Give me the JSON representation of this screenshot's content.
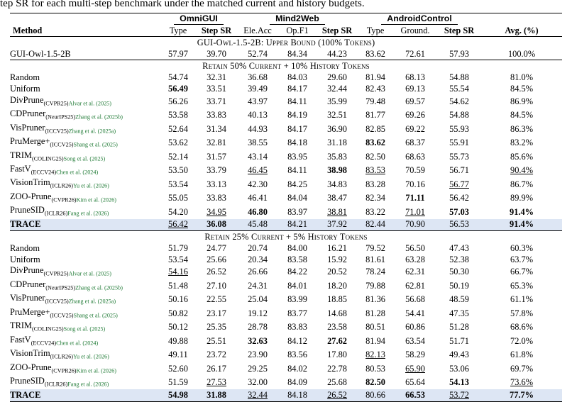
{
  "caption": "tep SR for each multi-step benchmark under the matched current and history budgets.",
  "benchmarks": [
    "OmniGUI",
    "Mind2Web",
    "AndroidControl"
  ],
  "columns": [
    "Method",
    "Type",
    "Step SR",
    "Ele.Acc",
    "Op.F1",
    "Step SR",
    "Type",
    "Ground.",
    "Step SR",
    "Avg. (%)"
  ],
  "sections": [
    {
      "title": "GUI-Owl-1.5-2B: Upper Bound (100% Tokens)",
      "rows": [
        {
          "method": "GUI-Owl-1.5-2B",
          "venue": "",
          "cite": "",
          "highlight": false,
          "cells": [
            {
              "v": "57.97"
            },
            {
              "v": "39.70"
            },
            {
              "v": "52.74"
            },
            {
              "v": "84.34"
            },
            {
              "v": "44.23"
            },
            {
              "v": "83.62"
            },
            {
              "v": "72.61"
            },
            {
              "v": "57.93"
            },
            {
              "v": "100.0%"
            }
          ]
        }
      ]
    },
    {
      "title": "Retain 50% Current + 10% History Tokens",
      "rows": [
        {
          "method": "Random",
          "venue": "",
          "cite": "",
          "highlight": false,
          "cells": [
            {
              "v": "54.74"
            },
            {
              "v": "32.31"
            },
            {
              "v": "36.68"
            },
            {
              "v": "84.03"
            },
            {
              "v": "29.60"
            },
            {
              "v": "81.94"
            },
            {
              "v": "68.13"
            },
            {
              "v": "54.88"
            },
            {
              "v": "81.0%"
            }
          ]
        },
        {
          "method": "Uniform",
          "venue": "",
          "cite": "",
          "highlight": false,
          "cells": [
            {
              "v": "56.49",
              "b": true
            },
            {
              "v": "33.51"
            },
            {
              "v": "39.49"
            },
            {
              "v": "84.17"
            },
            {
              "v": "32.44"
            },
            {
              "v": "82.43"
            },
            {
              "v": "69.13"
            },
            {
              "v": "55.54"
            },
            {
              "v": "84.5%"
            }
          ]
        },
        {
          "method": "DivPrune",
          "venue": "(CVPR25)",
          "cite": "Alvar et al. (2025)",
          "highlight": false,
          "cells": [
            {
              "v": "56.26"
            },
            {
              "v": "33.71"
            },
            {
              "v": "43.97"
            },
            {
              "v": "84.11"
            },
            {
              "v": "35.99"
            },
            {
              "v": "79.48"
            },
            {
              "v": "69.57"
            },
            {
              "v": "54.62"
            },
            {
              "v": "86.9%"
            }
          ]
        },
        {
          "method": "CDPruner",
          "venue": "(NeurIPS25)",
          "cite": "Zhang et al. (2025b)",
          "highlight": false,
          "cells": [
            {
              "v": "53.58"
            },
            {
              "v": "33.83"
            },
            {
              "v": "40.13"
            },
            {
              "v": "84.19"
            },
            {
              "v": "32.51"
            },
            {
              "v": "81.77"
            },
            {
              "v": "69.26"
            },
            {
              "v": "54.88"
            },
            {
              "v": "84.5%"
            }
          ]
        },
        {
          "method": "VisPruner",
          "venue": "(ICCV25)",
          "cite": "Zhang et al. (2025a)",
          "highlight": false,
          "cells": [
            {
              "v": "52.64"
            },
            {
              "v": "31.34"
            },
            {
              "v": "44.93"
            },
            {
              "v": "84.17"
            },
            {
              "v": "36.90"
            },
            {
              "v": "82.85"
            },
            {
              "v": "69.22"
            },
            {
              "v": "55.93"
            },
            {
              "v": "86.3%"
            }
          ]
        },
        {
          "method": "PruMerge+",
          "venue": "(ICCV25)",
          "cite": "Shang et al. (2025)",
          "highlight": false,
          "cells": [
            {
              "v": "53.62"
            },
            {
              "v": "32.81"
            },
            {
              "v": "38.55"
            },
            {
              "v": "84.18"
            },
            {
              "v": "31.18"
            },
            {
              "v": "83.62",
              "b": true
            },
            {
              "v": "68.37"
            },
            {
              "v": "55.91"
            },
            {
              "v": "83.2%"
            }
          ]
        },
        {
          "method": "TRIM",
          "venue": "(COLING25)",
          "cite": "Song et al. (2025)",
          "highlight": false,
          "cells": [
            {
              "v": "52.14"
            },
            {
              "v": "31.57"
            },
            {
              "v": "43.14"
            },
            {
              "v": "83.95"
            },
            {
              "v": "35.83"
            },
            {
              "v": "82.50"
            },
            {
              "v": "68.63"
            },
            {
              "v": "55.73"
            },
            {
              "v": "85.6%"
            }
          ]
        },
        {
          "method": "FastV",
          "venue": "(ECCV24)",
          "cite": "Chen et al. (2024)",
          "highlight": false,
          "cells": [
            {
              "v": "53.50"
            },
            {
              "v": "33.79"
            },
            {
              "v": "46.45",
              "u": true
            },
            {
              "v": "84.11"
            },
            {
              "v": "38.98",
              "b": true
            },
            {
              "v": "83.53",
              "u": true
            },
            {
              "v": "70.59"
            },
            {
              "v": "56.71"
            },
            {
              "v": "90.4%",
              "u": true
            }
          ]
        },
        {
          "method": "VisionTrim",
          "venue": "(ICLR26)",
          "cite": "Yu et al. (2026)",
          "highlight": false,
          "cells": [
            {
              "v": "53.54"
            },
            {
              "v": "33.13"
            },
            {
              "v": "42.30"
            },
            {
              "v": "84.25"
            },
            {
              "v": "34.83"
            },
            {
              "v": "83.28"
            },
            {
              "v": "70.16"
            },
            {
              "v": "56.77",
              "u": true
            },
            {
              "v": "86.7%"
            }
          ]
        },
        {
          "method": "ZOO-Prune",
          "venue": "(CVPR26)",
          "cite": "Kim et al. (2026)",
          "highlight": false,
          "cells": [
            {
              "v": "55.05"
            },
            {
              "v": "33.83"
            },
            {
              "v": "46.41"
            },
            {
              "v": "84.04"
            },
            {
              "v": "38.47"
            },
            {
              "v": "82.34"
            },
            {
              "v": "71.11",
              "b": true
            },
            {
              "v": "56.42"
            },
            {
              "v": "89.9%"
            }
          ]
        },
        {
          "method": "PruneSID",
          "venue": "(ICLR26)",
          "cite": "Fang et al. (2026)",
          "highlight": false,
          "cells": [
            {
              "v": "54.20"
            },
            {
              "v": "34.95",
              "u": true
            },
            {
              "v": "46.80",
              "b": true
            },
            {
              "v": "83.97"
            },
            {
              "v": "38.81",
              "u": true
            },
            {
              "v": "83.22"
            },
            {
              "v": "71.01",
              "u": true
            },
            {
              "v": "57.03",
              "b": true
            },
            {
              "v": "91.4%",
              "b": true
            }
          ]
        },
        {
          "method": "TRACE",
          "venue": "",
          "cite": "",
          "highlight": true,
          "cells": [
            {
              "v": "56.42",
              "u": true
            },
            {
              "v": "36.08",
              "b": true
            },
            {
              "v": "45.48"
            },
            {
              "v": "84.21"
            },
            {
              "v": "37.92"
            },
            {
              "v": "82.44"
            },
            {
              "v": "70.90"
            },
            {
              "v": "56.53"
            },
            {
              "v": "91.4%",
              "b": true
            }
          ]
        }
      ]
    },
    {
      "title": "Retain 25% Current + 5% History Tokens",
      "rows": [
        {
          "method": "Random",
          "venue": "",
          "cite": "",
          "highlight": false,
          "cells": [
            {
              "v": "51.79"
            },
            {
              "v": "24.77"
            },
            {
              "v": "20.74"
            },
            {
              "v": "84.00"
            },
            {
              "v": "16.21"
            },
            {
              "v": "79.52"
            },
            {
              "v": "56.50"
            },
            {
              "v": "47.43"
            },
            {
              "v": "60.3%"
            }
          ]
        },
        {
          "method": "Uniform",
          "venue": "",
          "cite": "",
          "highlight": false,
          "cells": [
            {
              "v": "53.54"
            },
            {
              "v": "25.66"
            },
            {
              "v": "20.34"
            },
            {
              "v": "83.58"
            },
            {
              "v": "15.92"
            },
            {
              "v": "81.61"
            },
            {
              "v": "63.28"
            },
            {
              "v": "52.38"
            },
            {
              "v": "63.7%"
            }
          ]
        },
        {
          "method": "DivPrune",
          "venue": "(CVPR25)",
          "cite": "Alvar et al. (2025)",
          "highlight": false,
          "cells": [
            {
              "v": "54.16",
              "u": true
            },
            {
              "v": "26.52"
            },
            {
              "v": "26.66"
            },
            {
              "v": "84.22"
            },
            {
              "v": "20.52"
            },
            {
              "v": "78.24"
            },
            {
              "v": "62.31"
            },
            {
              "v": "50.30"
            },
            {
              "v": "66.7%"
            }
          ]
        },
        {
          "method": "CDPruner",
          "venue": "(NeurIPS25)",
          "cite": "Zhang et al. (2025b)",
          "highlight": false,
          "cells": [
            {
              "v": "51.48"
            },
            {
              "v": "27.10"
            },
            {
              "v": "24.31"
            },
            {
              "v": "84.01"
            },
            {
              "v": "18.20"
            },
            {
              "v": "79.88"
            },
            {
              "v": "62.81"
            },
            {
              "v": "50.19"
            },
            {
              "v": "65.3%"
            }
          ]
        },
        {
          "method": "VisPruner",
          "venue": "(ICCV25)",
          "cite": "Zhang et al. (2025a)",
          "highlight": false,
          "cells": [
            {
              "v": "50.16"
            },
            {
              "v": "22.55"
            },
            {
              "v": "25.04"
            },
            {
              "v": "83.99"
            },
            {
              "v": "18.85"
            },
            {
              "v": "81.36"
            },
            {
              "v": "56.68"
            },
            {
              "v": "48.59"
            },
            {
              "v": "61.1%"
            }
          ]
        },
        {
          "method": "PruMerge+",
          "venue": "(ICCV25)",
          "cite": "Shang et al. (2025)",
          "highlight": false,
          "cells": [
            {
              "v": "50.82"
            },
            {
              "v": "23.17"
            },
            {
              "v": "19.12"
            },
            {
              "v": "83.77"
            },
            {
              "v": "14.68"
            },
            {
              "v": "81.28"
            },
            {
              "v": "54.41"
            },
            {
              "v": "47.35"
            },
            {
              "v": "57.8%"
            }
          ]
        },
        {
          "method": "TRIM",
          "venue": "(COLING25)",
          "cite": "Song et al. (2025)",
          "highlight": false,
          "cells": [
            {
              "v": "50.12"
            },
            {
              "v": "25.35"
            },
            {
              "v": "28.78"
            },
            {
              "v": "83.83"
            },
            {
              "v": "23.58"
            },
            {
              "v": "80.51"
            },
            {
              "v": "60.86"
            },
            {
              "v": "51.28"
            },
            {
              "v": "68.6%"
            }
          ]
        },
        {
          "method": "FastV",
          "venue": "(ECCV24)",
          "cite": "Chen et al. (2024)",
          "highlight": false,
          "cells": [
            {
              "v": "49.88"
            },
            {
              "v": "25.51"
            },
            {
              "v": "32.63",
              "b": true
            },
            {
              "v": "84.12"
            },
            {
              "v": "27.62",
              "b": true
            },
            {
              "v": "81.94"
            },
            {
              "v": "63.54"
            },
            {
              "v": "51.71"
            },
            {
              "v": "72.0%"
            }
          ]
        },
        {
          "method": "VisionTrim",
          "venue": "(ICLR26)",
          "cite": "Yu et al. (2026)",
          "highlight": false,
          "cells": [
            {
              "v": "49.11"
            },
            {
              "v": "23.72"
            },
            {
              "v": "23.90"
            },
            {
              "v": "83.56"
            },
            {
              "v": "17.80"
            },
            {
              "v": "82.13",
              "u": true
            },
            {
              "v": "58.29"
            },
            {
              "v": "49.43"
            },
            {
              "v": "61.8%"
            }
          ]
        },
        {
          "method": "ZOO-Prune",
          "venue": "(CVPR26)",
          "cite": "Kim et al. (2026)",
          "highlight": false,
          "cells": [
            {
              "v": "52.60"
            },
            {
              "v": "26.17"
            },
            {
              "v": "29.25"
            },
            {
              "v": "84.02"
            },
            {
              "v": "22.78"
            },
            {
              "v": "80.53"
            },
            {
              "v": "65.90",
              "u": true
            },
            {
              "v": "53.06"
            },
            {
              "v": "69.7%"
            }
          ]
        },
        {
          "method": "PruneSID",
          "venue": "(ICLR26)",
          "cite": "Fang et al. (2026)",
          "highlight": false,
          "cells": [
            {
              "v": "51.59"
            },
            {
              "v": "27.53",
              "u": true
            },
            {
              "v": "32.00"
            },
            {
              "v": "84.09"
            },
            {
              "v": "25.68"
            },
            {
              "v": "82.50",
              "b": true
            },
            {
              "v": "65.64"
            },
            {
              "v": "54.13",
              "b": true
            },
            {
              "v": "73.6%",
              "u": true
            }
          ]
        },
        {
          "method": "TRACE",
          "venue": "",
          "cite": "",
          "highlight": true,
          "cells": [
            {
              "v": "54.98",
              "b": true
            },
            {
              "v": "31.88",
              "b": true
            },
            {
              "v": "32.44",
              "u": true
            },
            {
              "v": "84.18"
            },
            {
              "v": "26.52",
              "u": true
            },
            {
              "v": "80.66"
            },
            {
              "v": "66.53",
              "b": true
            },
            {
              "v": "53.72",
              "u": true
            },
            {
              "v": "77.7%",
              "b": true
            }
          ]
        }
      ]
    }
  ]
}
